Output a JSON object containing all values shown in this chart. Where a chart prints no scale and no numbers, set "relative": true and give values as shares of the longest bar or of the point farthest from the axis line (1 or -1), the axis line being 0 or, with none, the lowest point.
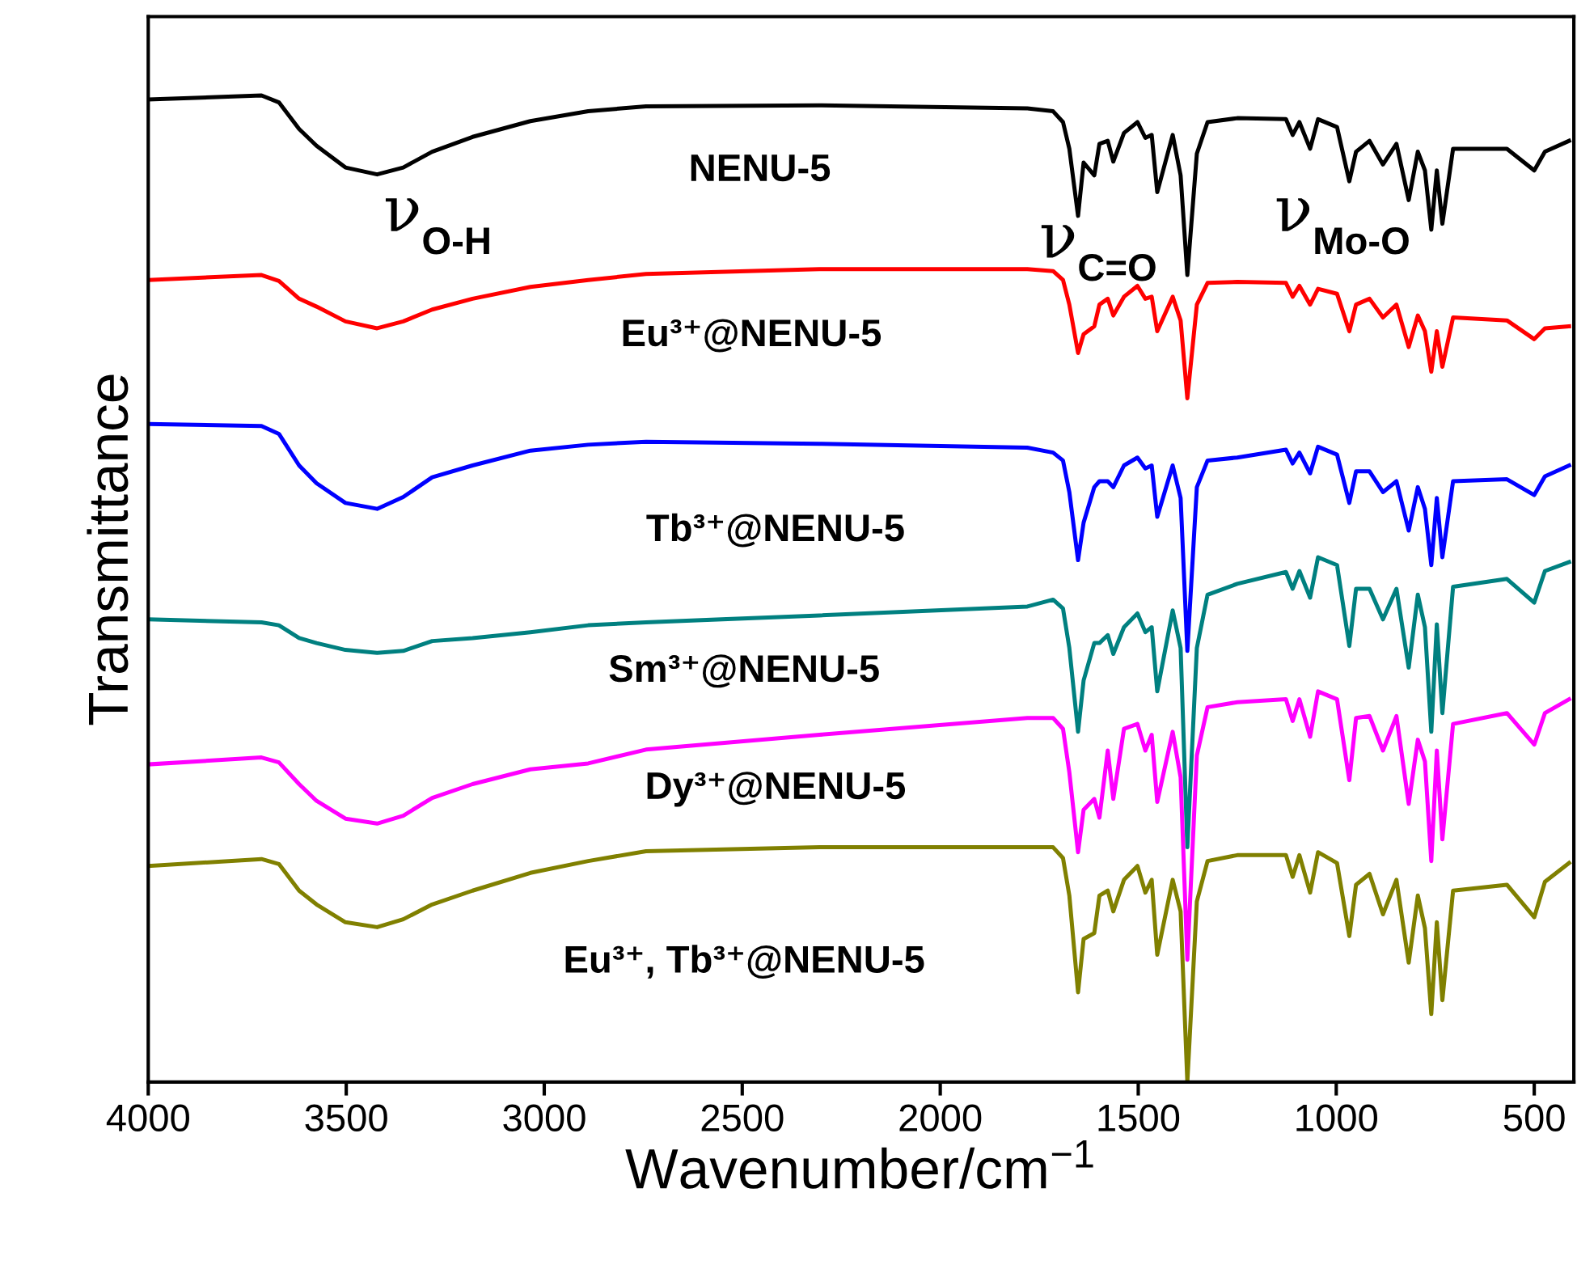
{
  "chart_data": {
    "type": "line",
    "relative": true,
    "xlabel": "Wavenumber/cm$^{−1}$",
    "ylabel": "Transmittance",
    "xlim": [
      4000,
      400
    ],
    "xticks": [
      4000,
      3500,
      3000,
      2500,
      2000,
      1500,
      1000,
      500
    ],
    "legend": false,
    "grid": false,
    "x": [
      4000,
      3714,
      3670,
      3619,
      3575,
      3502,
      3422,
      3356,
      3283,
      3181,
      3035,
      2889,
      2743,
      2305,
      1780,
      1715,
      1690,
      1674,
      1652,
      1638,
      1611,
      1598,
      1577,
      1563,
      1536,
      1502,
      1482,
      1466,
      1452,
      1413,
      1393,
      1376,
      1352,
      1325,
      1250,
      1127,
      1110,
      1093,
      1066,
      1046,
      998,
      967,
      950,
      916,
      882,
      848,
      817,
      794,
      776,
      760,
      746,
      732,
      705,
      569,
      500,
      473,
      412
    ],
    "series": [
      {
        "name": "NENU-5",
        "color": "#000000",
        "values": [
          0.996,
          1.0,
          0.993,
          0.966,
          0.949,
          0.927,
          0.92,
          0.927,
          0.943,
          0.958,
          0.974,
          0.984,
          0.989,
          0.99,
          0.987,
          0.984,
          0.973,
          0.946,
          0.878,
          0.932,
          0.919,
          0.951,
          0.954,
          0.933,
          0.962,
          0.973,
          0.957,
          0.96,
          0.902,
          0.96,
          0.919,
          0.818,
          0.941,
          0.973,
          0.977,
          0.976,
          0.96,
          0.973,
          0.946,
          0.976,
          0.968,
          0.913,
          0.943,
          0.954,
          0.93,
          0.951,
          0.894,
          0.943,
          0.924,
          0.864,
          0.924,
          0.87,
          0.946,
          0.946,
          0.924,
          0.943,
          0.954
        ]
      },
      {
        "name": "Eu³⁺@NENU-5",
        "color": "#ff0000",
        "values": [
          0.813,
          0.818,
          0.812,
          0.794,
          0.786,
          0.771,
          0.764,
          0.771,
          0.783,
          0.794,
          0.806,
          0.813,
          0.819,
          0.824,
          0.824,
          0.822,
          0.813,
          0.788,
          0.739,
          0.758,
          0.766,
          0.788,
          0.794,
          0.777,
          0.796,
          0.807,
          0.794,
          0.796,
          0.761,
          0.796,
          0.772,
          0.693,
          0.788,
          0.81,
          0.811,
          0.81,
          0.796,
          0.807,
          0.788,
          0.804,
          0.799,
          0.761,
          0.788,
          0.794,
          0.775,
          0.788,
          0.745,
          0.777,
          0.761,
          0.72,
          0.761,
          0.725,
          0.775,
          0.772,
          0.753,
          0.764,
          0.766
        ]
      },
      {
        "name": "Tb³⁺@NENU-5",
        "color": "#0000ff",
        "values": [
          0.667,
          0.665,
          0.657,
          0.625,
          0.607,
          0.587,
          0.581,
          0.593,
          0.613,
          0.625,
          0.64,
          0.646,
          0.649,
          0.647,
          0.643,
          0.638,
          0.63,
          0.598,
          0.529,
          0.567,
          0.603,
          0.609,
          0.609,
          0.603,
          0.625,
          0.633,
          0.622,
          0.625,
          0.573,
          0.625,
          0.592,
          0.437,
          0.603,
          0.63,
          0.633,
          0.641,
          0.627,
          0.638,
          0.617,
          0.644,
          0.636,
          0.587,
          0.619,
          0.619,
          0.598,
          0.609,
          0.559,
          0.603,
          0.581,
          0.524,
          0.592,
          0.532,
          0.609,
          0.611,
          0.595,
          0.614,
          0.625
        ]
      },
      {
        "name": "Sm³⁺@NENU-5",
        "color": "#008080",
        "values": [
          0.469,
          0.466,
          0.463,
          0.45,
          0.445,
          0.438,
          0.435,
          0.437,
          0.447,
          0.45,
          0.456,
          0.463,
          0.466,
          0.473,
          0.482,
          0.489,
          0.48,
          0.44,
          0.355,
          0.407,
          0.445,
          0.445,
          0.453,
          0.434,
          0.461,
          0.475,
          0.456,
          0.461,
          0.396,
          0.478,
          0.44,
          0.238,
          0.44,
          0.494,
          0.505,
          0.517,
          0.5,
          0.518,
          0.491,
          0.532,
          0.524,
          0.442,
          0.5,
          0.5,
          0.469,
          0.5,
          0.42,
          0.494,
          0.461,
          0.355,
          0.464,
          0.374,
          0.502,
          0.51,
          0.486,
          0.518,
          0.527
        ]
      },
      {
        "name": "Dy³⁺@NENU-5",
        "color": "#ff00ff",
        "values": [
          0.322,
          0.329,
          0.324,
          0.302,
          0.285,
          0.267,
          0.262,
          0.27,
          0.288,
          0.302,
          0.317,
          0.323,
          0.337,
          0.352,
          0.369,
          0.369,
          0.358,
          0.314,
          0.233,
          0.276,
          0.287,
          0.268,
          0.336,
          0.287,
          0.358,
          0.363,
          0.336,
          0.352,
          0.284,
          0.355,
          0.309,
          0.124,
          0.331,
          0.38,
          0.385,
          0.388,
          0.366,
          0.388,
          0.35,
          0.396,
          0.388,
          0.306,
          0.369,
          0.371,
          0.336,
          0.371,
          0.282,
          0.347,
          0.325,
          0.224,
          0.336,
          0.246,
          0.363,
          0.374,
          0.342,
          0.374,
          0.388
        ]
      },
      {
        "name": "Eu³⁺, Tb³⁺@NENU-5",
        "color": "#808000",
        "values": [
          0.219,
          0.226,
          0.221,
          0.194,
          0.18,
          0.162,
          0.157,
          0.165,
          0.18,
          0.194,
          0.212,
          0.224,
          0.234,
          0.238,
          0.238,
          0.238,
          0.227,
          0.189,
          0.091,
          0.145,
          0.151,
          0.189,
          0.194,
          0.173,
          0.205,
          0.219,
          0.192,
          0.205,
          0.129,
          0.205,
          0.173,
          0.0,
          0.183,
          0.224,
          0.23,
          0.23,
          0.208,
          0.23,
          0.192,
          0.233,
          0.222,
          0.148,
          0.2,
          0.211,
          0.17,
          0.205,
          0.121,
          0.189,
          0.156,
          0.069,
          0.162,
          0.083,
          0.194,
          0.2,
          0.167,
          0.203,
          0.222
        ]
      }
    ],
    "annotations": [
      "ν$_{O-H}$",
      "ν$_{C=O}$",
      "ν$_{Mo-O}$"
    ]
  }
}
